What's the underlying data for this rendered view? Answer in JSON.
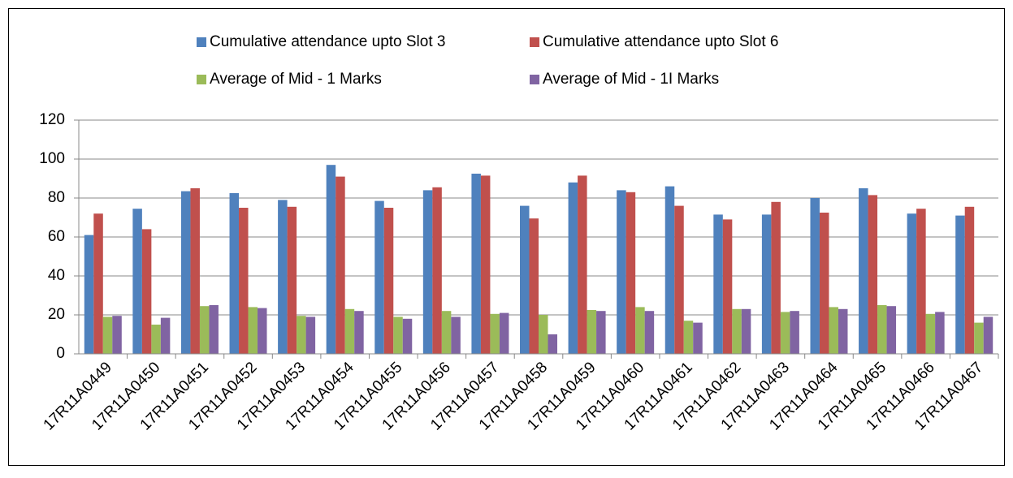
{
  "chart_data": {
    "type": "bar",
    "categories": [
      "17R11A0449",
      "17R11A0450",
      "17R11A0451",
      "17R11A0452",
      "17R11A0453",
      "17R11A0454",
      "17R11A0455",
      "17R11A0456",
      "17R11A0457",
      "17R11A0458",
      "17R11A0459",
      "17R11A0460",
      "17R11A0461",
      "17R11A0462",
      "17R11A0463",
      "17R11A0464",
      "17R11A0465",
      "17R11A0466",
      "17R11A0467"
    ],
    "series": [
      {
        "name": "Cumulative attendance upto Slot 3",
        "color": "#4f81bd",
        "values": [
          61,
          74.5,
          83.5,
          82.5,
          79,
          97,
          78.5,
          84,
          92.5,
          76,
          88,
          84,
          86,
          71.5,
          71.5,
          80,
          85,
          72,
          71
        ]
      },
      {
        "name": "Cumulative attendance upto Slot 6",
        "color": "#c0504d",
        "values": [
          72,
          64,
          85,
          75,
          75.5,
          91,
          75,
          85.5,
          91.5,
          69.5,
          91.5,
          83,
          76,
          69,
          78,
          72.5,
          81.5,
          74.5,
          75.5
        ]
      },
      {
        "name": "Average of Mid - 1 Marks",
        "color": "#9bbb59",
        "values": [
          19,
          15,
          24.5,
          24,
          19.5,
          23,
          19,
          22,
          20.5,
          20,
          22.5,
          24,
          17,
          23,
          21.5,
          24,
          25,
          20.5,
          16
        ]
      },
      {
        "name": "Average of Mid - 1I Marks",
        "color": "#8064a2",
        "values": [
          19.5,
          18.5,
          25,
          23.5,
          19,
          22,
          18,
          19,
          21,
          10,
          22,
          22,
          16,
          23,
          22,
          23,
          24.5,
          21.5,
          19
        ]
      }
    ],
    "ylim": [
      0,
      120
    ],
    "yticks": [
      0,
      20,
      40,
      60,
      80,
      100,
      120
    ],
    "grid": true,
    "legend": "top"
  }
}
